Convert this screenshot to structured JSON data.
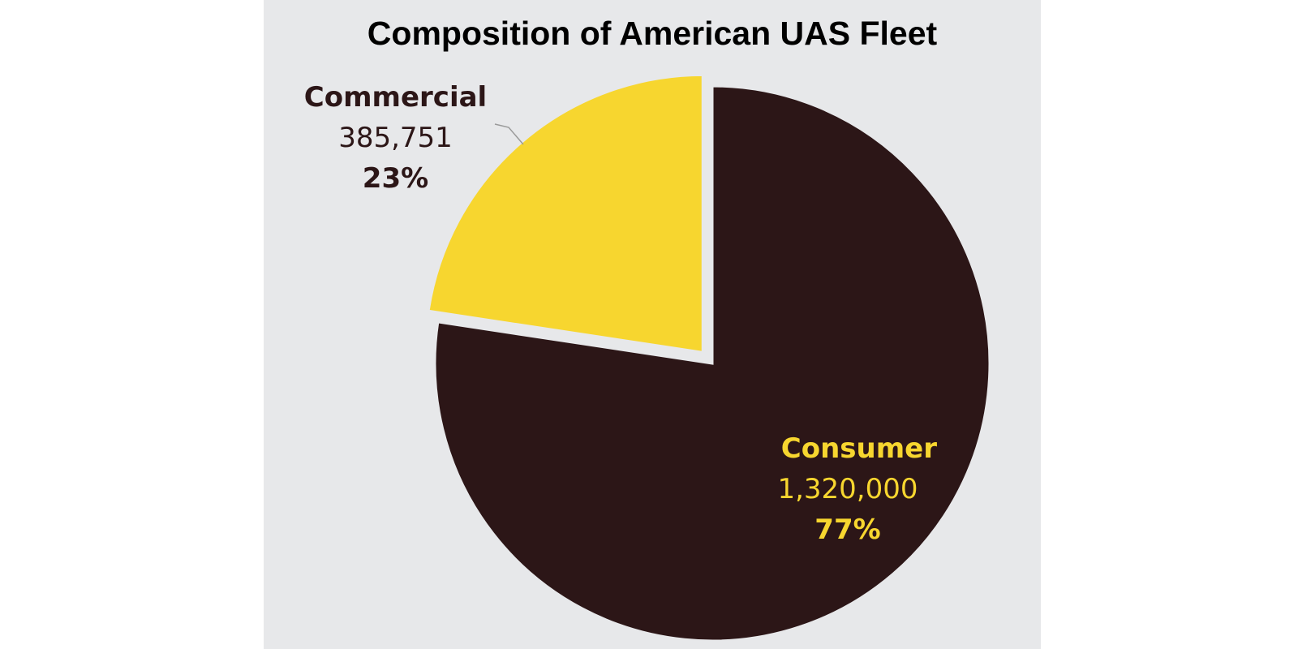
{
  "chart_data": {
    "type": "pie",
    "title": "Composition of American UAS Fleet",
    "slices": [
      {
        "name": "Commercial",
        "value": 385751,
        "value_label": "385,751",
        "percent": 23,
        "percent_label": "23%",
        "color": "#f7d62f",
        "label_color": "#2c1617",
        "exploded": true
      },
      {
        "name": "Consumer",
        "value": 1320000,
        "value_label": "1,320,000",
        "percent": 77,
        "percent_label": "77%",
        "color": "#2c1617",
        "label_color": "#f7d62f",
        "exploded": false
      }
    ]
  },
  "colors": {
    "background": "#e7e8ea",
    "leader_line": "#9a9a9a"
  }
}
